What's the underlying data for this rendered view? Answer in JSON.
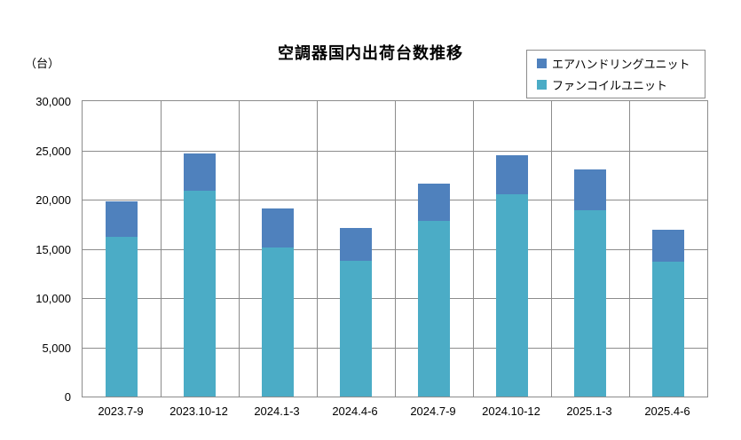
{
  "chart": {
    "title": "空調器国内出荷台数推移",
    "unit_label": "（台）",
    "legend": [
      {
        "label": "エアハンドリングユニット",
        "color": "#4F81BD"
      },
      {
        "label": "ファンコイルユニット",
        "color": "#4BACC6"
      }
    ],
    "colors": {
      "air_handling_blue": "#4F81BD",
      "fan_coil_teal": "#4BACC6",
      "gridline_gray": "#8c8c8c",
      "text_black": "#000000",
      "background": "#ffffff"
    }
  },
  "chart_data": {
    "type": "bar",
    "stacked": true,
    "title": "空調器国内出荷台数推移",
    "xlabel": "",
    "ylabel": "（台）",
    "categories": [
      "2023.7-9",
      "2023.10-12",
      "2024.1-3",
      "2024.4-6",
      "2024.7-9",
      "2024.10-12",
      "2025.1-3",
      "2025.4-6"
    ],
    "series": [
      {
        "name": "ファンコイルユニット",
        "color": "#4BACC6",
        "stack_position": "bottom",
        "values": [
          16200,
          20900,
          15100,
          13800,
          17800,
          20500,
          18900,
          13700
        ]
      },
      {
        "name": "エアハンドリングユニット",
        "color": "#4F81BD",
        "stack_position": "top",
        "values": [
          3600,
          3800,
          4000,
          3300,
          3800,
          4000,
          4200,
          3200
        ]
      }
    ],
    "stack_totals": [
      19800,
      24700,
      19100,
      17100,
      21600,
      24500,
      23100,
      16900
    ],
    "ylim": [
      0,
      30000
    ],
    "ytick_interval": 5000,
    "yticks": [
      {
        "value": 0,
        "label": "0"
      },
      {
        "value": 5000,
        "label": "5,000"
      },
      {
        "value": 10000,
        "label": "10,000"
      },
      {
        "value": 15000,
        "label": "15,000"
      },
      {
        "value": 20000,
        "label": "20,000"
      },
      {
        "value": 25000,
        "label": "25,000"
      },
      {
        "value": 30000,
        "label": "30,000"
      }
    ],
    "grid": true,
    "legend_position": "top-right"
  }
}
